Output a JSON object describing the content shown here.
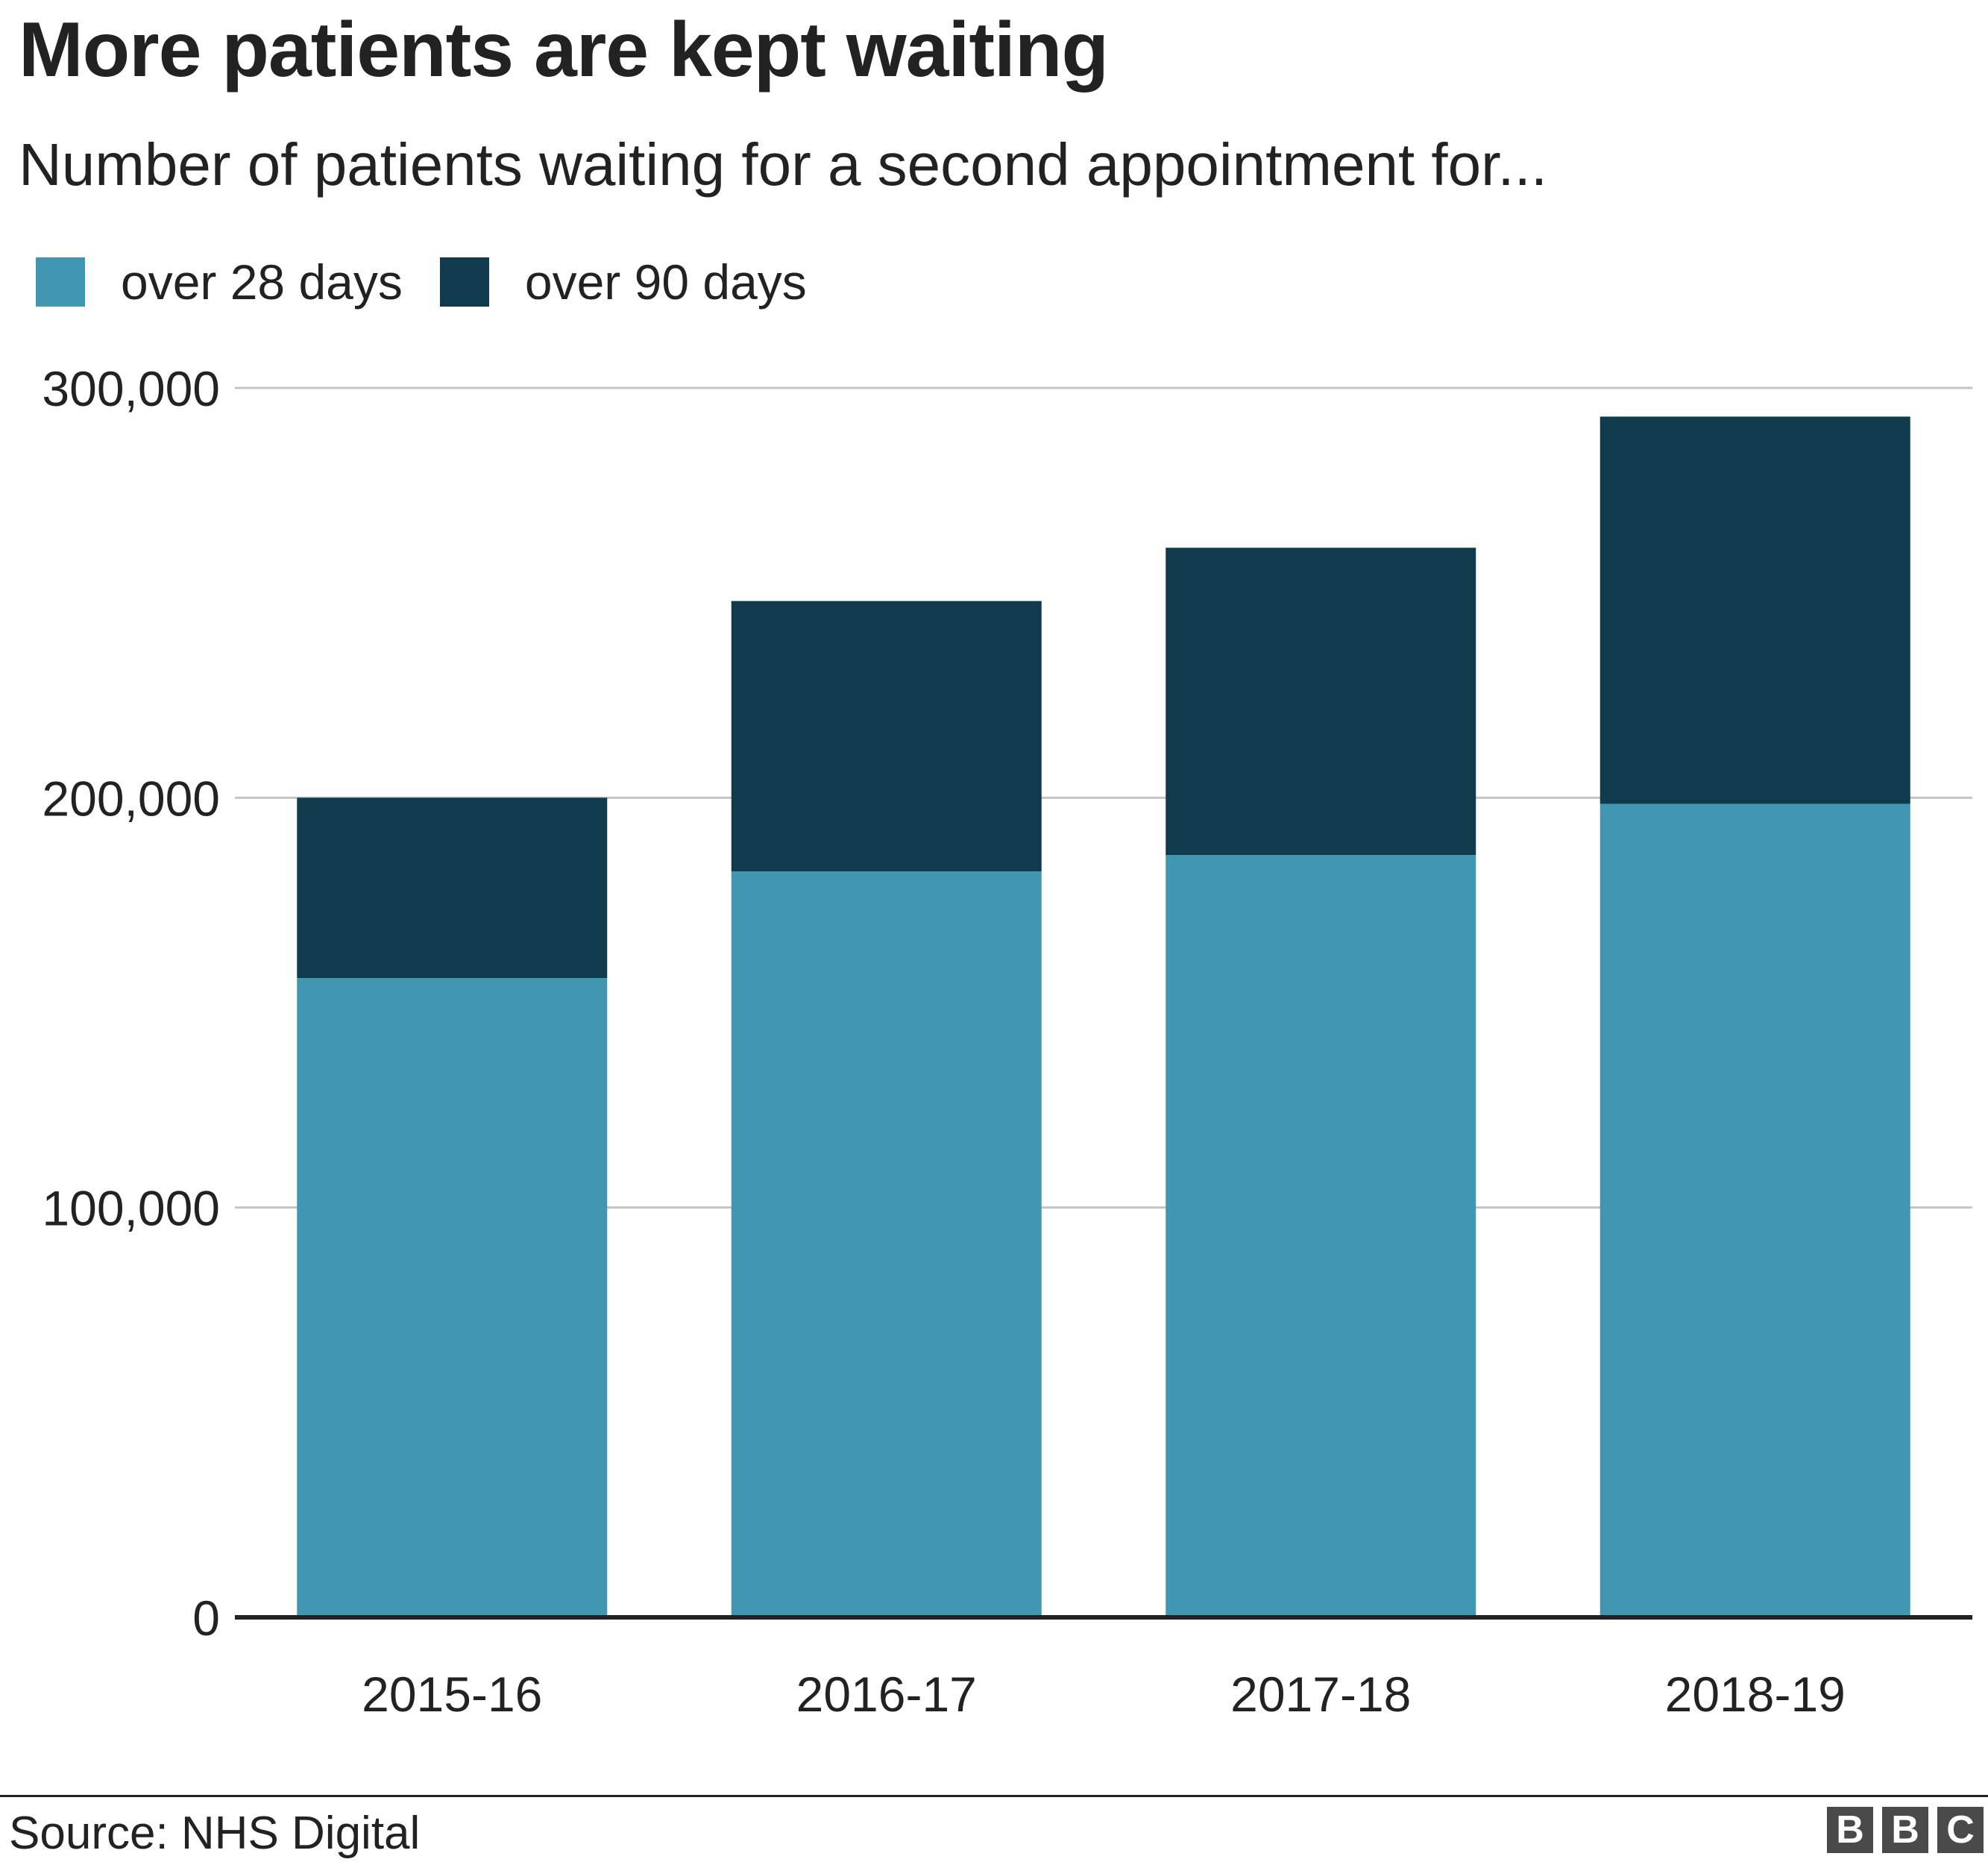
{
  "header": {
    "title": "More patients are kept waiting",
    "subtitle": "Number of patients waiting for a second appointment for..."
  },
  "footer": {
    "source": "Source: NHS Digital",
    "logo_letters": [
      "B",
      "B",
      "C"
    ]
  },
  "chart_data": {
    "type": "bar",
    "stacked": true,
    "categories": [
      "2015-16",
      "2016-17",
      "2017-18",
      "2018-19"
    ],
    "series": [
      {
        "name": "over 28 days",
        "color": "#4197b1",
        "values": [
          156000,
          182000,
          186000,
          198500
        ]
      },
      {
        "name": "over 90 days",
        "color": "#0f3b4c",
        "values": [
          44000,
          66000,
          75000,
          94500
        ]
      }
    ],
    "ylim": [
      0,
      300000
    ],
    "yticks": [
      0,
      100000,
      200000,
      300000
    ],
    "ytick_labels": [
      "0",
      "100,000",
      "200,000",
      "300,000"
    ],
    "grid": true,
    "legend_position": "top-left",
    "xlabel": "",
    "ylabel": ""
  }
}
